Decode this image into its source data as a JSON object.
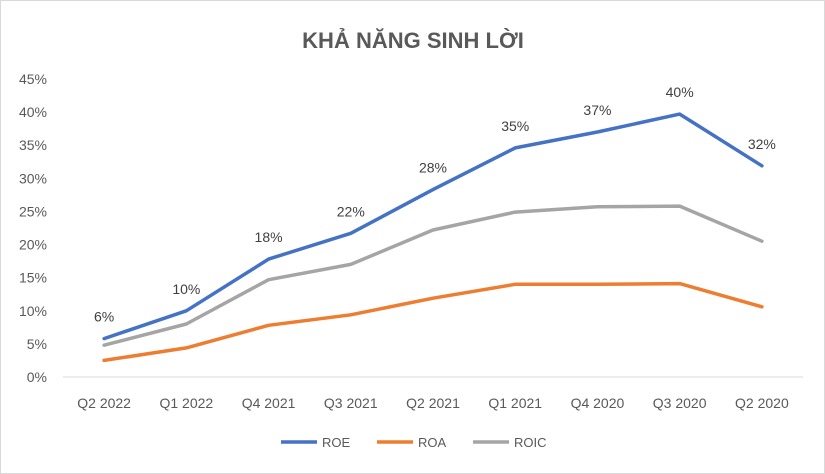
{
  "chart_data": {
    "type": "line",
    "title": "KHẢ NĂNG SINH LỜI",
    "xlabel": "",
    "ylabel": "",
    "categories": [
      "Q2 2022",
      "Q1 2022",
      "Q4 2021",
      "Q3 2021",
      "Q2 2021",
      "Q1 2021",
      "Q4 2020",
      "Q3 2020",
      "Q2 2020"
    ],
    "ylim": [
      0,
      45
    ],
    "yticks": [
      "0%",
      "5%",
      "10%",
      "15%",
      "20%",
      "25%",
      "30%",
      "35%",
      "40%",
      "45%"
    ],
    "grid": false,
    "legend_position": "bottom",
    "series": [
      {
        "name": "ROE",
        "color": "#4472c4",
        "values": [
          5.8,
          10.0,
          17.8,
          21.7,
          28.3,
          34.6,
          37.0,
          39.7,
          31.9
        ],
        "labels": [
          "6%",
          "10%",
          "18%",
          "22%",
          "28%",
          "35%",
          "37%",
          "40%",
          "32%"
        ]
      },
      {
        "name": "ROA",
        "color": "#ed7d31",
        "values": [
          2.5,
          4.4,
          7.8,
          9.4,
          11.9,
          14.0,
          14.0,
          14.1,
          10.6
        ]
      },
      {
        "name": "ROIC",
        "color": "#a5a5a5",
        "values": [
          4.8,
          8.0,
          14.7,
          17.0,
          22.2,
          24.9,
          25.7,
          25.8,
          20.5
        ]
      }
    ]
  }
}
